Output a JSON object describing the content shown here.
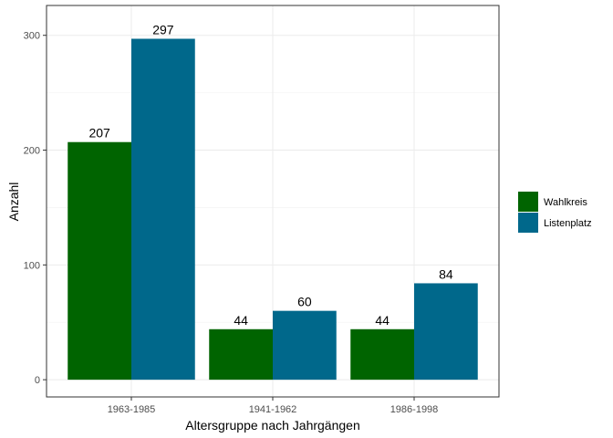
{
  "chart_data": {
    "type": "bar",
    "categories": [
      "1963-1985",
      "1941-1962",
      "1986-1998"
    ],
    "series": [
      {
        "name": "Wahlkreis",
        "values": [
          207,
          44,
          44
        ],
        "color": "#006400"
      },
      {
        "name": "Listenplatz",
        "values": [
          297,
          60,
          84
        ],
        "color": "#00688B"
      }
    ],
    "xlabel": "Altersgruppe nach Jahrgängen",
    "ylabel": "Anzahl",
    "ylim": [
      -15,
      326
    ],
    "yticks": [
      0,
      100,
      200,
      300
    ],
    "grid": true,
    "legend_position": "right",
    "data_labels": true
  }
}
